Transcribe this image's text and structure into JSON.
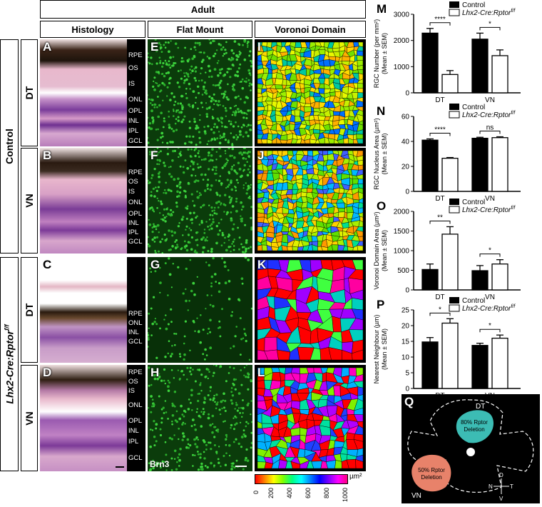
{
  "header": {
    "adult": "Adult",
    "histology": "Histology",
    "flat_mount": "Flat Mount",
    "voronoi": "Voronoi Domain"
  },
  "groups": {
    "control": "Control",
    "mutant": "Lhx2-Cre:Rptor",
    "mutant_sup": "f/f"
  },
  "regions": {
    "dt": "DT",
    "vn": "VN"
  },
  "panel_letters": {
    "A": "A",
    "B": "B",
    "C": "C",
    "D": "D",
    "E": "E",
    "F": "F",
    "G": "G",
    "H": "H",
    "I": "I",
    "J": "J",
    "K": "K",
    "L": "L",
    "M": "M",
    "N": "N",
    "O": "O",
    "P": "P",
    "Q": "Q"
  },
  "layers": {
    "A": [
      "RPE",
      "OS",
      "IS",
      "ONL",
      "OPL",
      "INL",
      "IPL",
      "GCL"
    ],
    "B": [
      "RPE",
      "OS",
      "IS",
      "ONL",
      "OPL",
      "INL",
      "IPL",
      "GCL"
    ],
    "C": [
      "RPE",
      "ONL",
      "INL",
      "GCL"
    ],
    "D": [
      "RPE",
      "OS",
      "IS",
      "ONL",
      "OPL",
      "INL",
      "IPL",
      "GCL"
    ]
  },
  "stain_label": "Brn3",
  "colorbar": {
    "ticks": [
      "0",
      "200",
      "400",
      "600",
      "800",
      "1000"
    ],
    "unit": "µm²",
    "colors": [
      "#ff0000",
      "#ff8000",
      "#ffff00",
      "#80ff00",
      "#00ff80",
      "#00ffff",
      "#0080ff",
      "#0000ff",
      "#8000ff",
      "#ff00ff",
      "#ff0080"
    ]
  },
  "legend": {
    "control": "Control",
    "mutant": "Lhx2-Cre:Rptor",
    "mutant_sup": "f/f"
  },
  "chart_data": [
    {
      "id": "M",
      "type": "bar",
      "categories": [
        "DT",
        "VN"
      ],
      "series": [
        {
          "name": "Control",
          "values": [
            2280,
            2050
          ],
          "err": [
            180,
            230
          ]
        },
        {
          "name": "Lhx2-Cre:Rptor f/f",
          "values": [
            700,
            1420
          ],
          "err": [
            150,
            220
          ]
        }
      ],
      "ylabel": "RGC Number (per mm²)",
      "ylabel2": "(Mean ± SEM)",
      "ylim": [
        0,
        3000
      ],
      "yticks": [
        "0",
        "1000",
        "2000",
        "3000"
      ],
      "sig": [
        "****",
        "*"
      ]
    },
    {
      "id": "N",
      "type": "bar",
      "categories": [
        "DT",
        "VN"
      ],
      "series": [
        {
          "name": "Control",
          "values": [
            41,
            42.5
          ],
          "err": [
            1,
            0.8
          ]
        },
        {
          "name": "Lhx2-Cre:Rptor f/f",
          "values": [
            26.5,
            43
          ],
          "err": [
            0.6,
            0.7
          ]
        }
      ],
      "ylabel": "RGC Nucleus Area (µm²)",
      "ylabel2": "(Mean ± SEM)",
      "ylim": [
        0,
        60
      ],
      "yticks": [
        "0",
        "20",
        "40",
        "60"
      ],
      "sig": [
        "****",
        "ns"
      ]
    },
    {
      "id": "O",
      "type": "bar",
      "categories": [
        "DT",
        "VN"
      ],
      "series": [
        {
          "name": "Control",
          "values": [
            520,
            490
          ],
          "err": [
            140,
            130
          ]
        },
        {
          "name": "Lhx2-Cre:Rptor f/f",
          "values": [
            1420,
            660
          ],
          "err": [
            190,
            110
          ]
        }
      ],
      "ylabel": "Voronoi Domain Area (µm²)",
      "ylabel2": "(Mean ± SEM)",
      "ylim": [
        0,
        2000
      ],
      "yticks": [
        "0",
        "500",
        "1000",
        "1500",
        "2000"
      ],
      "sig": [
        "**",
        "*"
      ]
    },
    {
      "id": "P",
      "type": "bar",
      "categories": [
        "DT",
        "VN"
      ],
      "series": [
        {
          "name": "Control",
          "values": [
            14.8,
            13.7
          ],
          "err": [
            1.4,
            0.7
          ]
        },
        {
          "name": "Lhx2-Cre:Rptor f/f",
          "values": [
            20.8,
            16
          ],
          "err": [
            1.4,
            1
          ]
        }
      ],
      "ylabel": "Nearest Neighbour (µm)",
      "ylabel2": "(Mean ± SEM)",
      "ylim": [
        0,
        25
      ],
      "yticks": [
        "0",
        "5",
        "10",
        "15",
        "20",
        "25"
      ],
      "sig": [
        "*",
        "*"
      ]
    }
  ],
  "schematic": {
    "dt_label": "DT",
    "vn_label": "VN",
    "dt_deletion": "80% Rptor",
    "dt_deletion2": "Deletion",
    "vn_deletion": "50% Rptor",
    "vn_deletion2": "Deletion",
    "compass": {
      "d": "D",
      "n": "N",
      "t": "T",
      "v": "V"
    },
    "dt_color": "#3cbcb4",
    "vn_color": "#e8826a"
  }
}
